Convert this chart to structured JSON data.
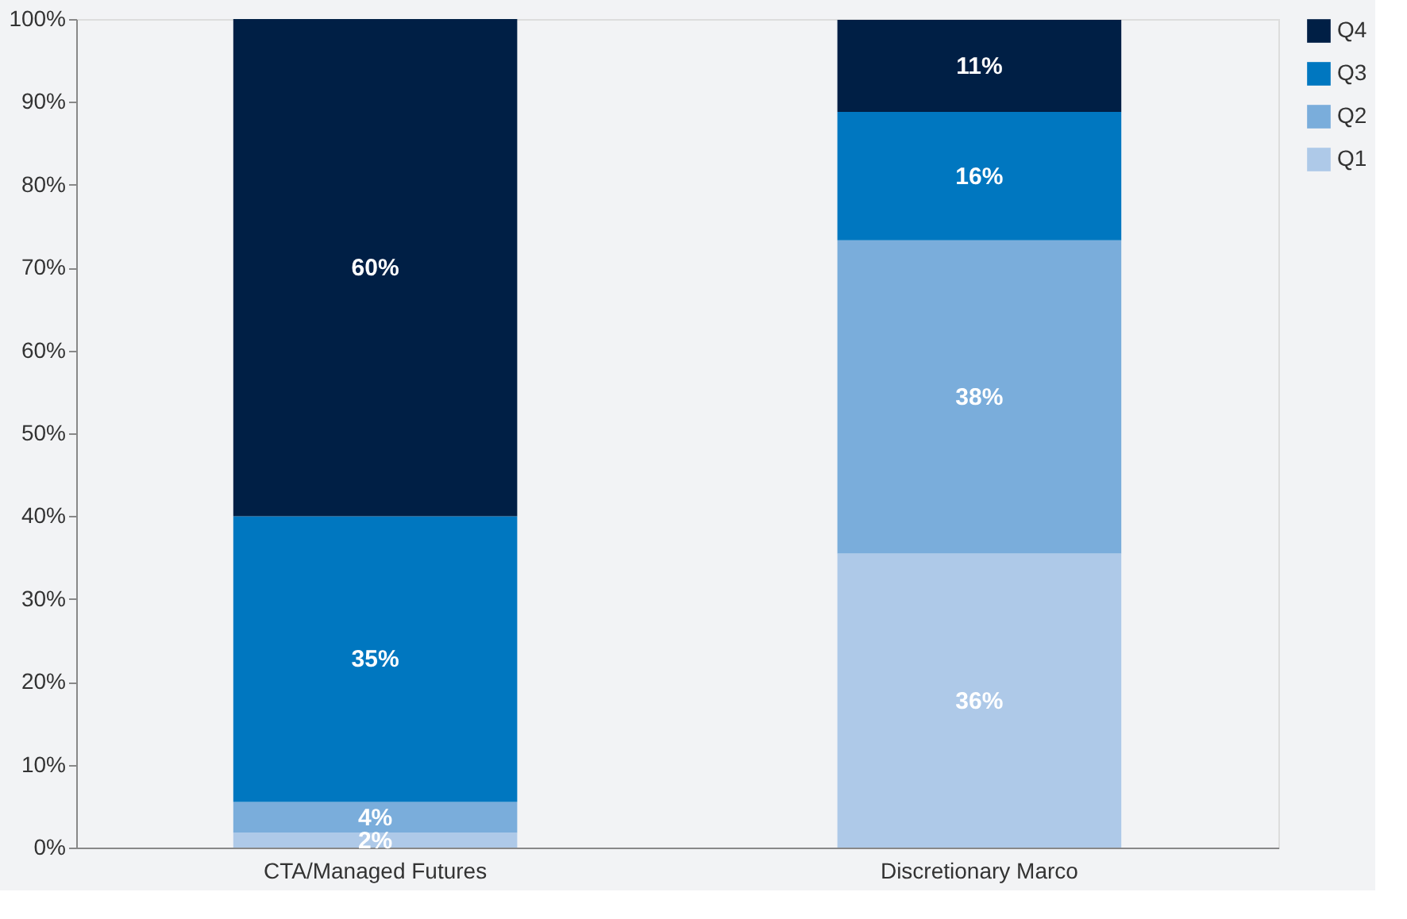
{
  "chart_data": {
    "type": "bar",
    "stacked": true,
    "categories": [
      "CTA/Managed Futures",
      "Discretionary Marco"
    ],
    "series": [
      {
        "name": "Q1",
        "color": "#aec9e8",
        "values": [
          1.8,
          35.5
        ],
        "value_labels": [
          "2%",
          "36%"
        ]
      },
      {
        "name": "Q2",
        "color": "#7aaddb",
        "values": [
          3.7,
          37.8
        ],
        "value_labels": [
          "4%",
          "38%"
        ]
      },
      {
        "name": "Q3",
        "color": "#0077c0",
        "values": [
          34.5,
          15.5
        ],
        "value_labels": [
          "35%",
          "16%"
        ]
      },
      {
        "name": "Q4",
        "color": "#001f45",
        "values": [
          60,
          11.1
        ],
        "value_labels": [
          "60%",
          "11%"
        ]
      }
    ],
    "ylim": [
      0,
      100
    ],
    "yticks": [
      {
        "value": 0,
        "label": "0%"
      },
      {
        "value": 10,
        "label": "10%"
      },
      {
        "value": 20,
        "label": "20%"
      },
      {
        "value": 30,
        "label": "30%"
      },
      {
        "value": 40,
        "label": "40%"
      },
      {
        "value": 50,
        "label": "50%"
      },
      {
        "value": 60,
        "label": "60%"
      },
      {
        "value": 70,
        "label": "70%"
      },
      {
        "value": 80,
        "label": "80%"
      },
      {
        "value": 90,
        "label": "90%"
      },
      {
        "value": 100,
        "label": "100%"
      }
    ],
    "grid": false,
    "legend": "top right"
  }
}
